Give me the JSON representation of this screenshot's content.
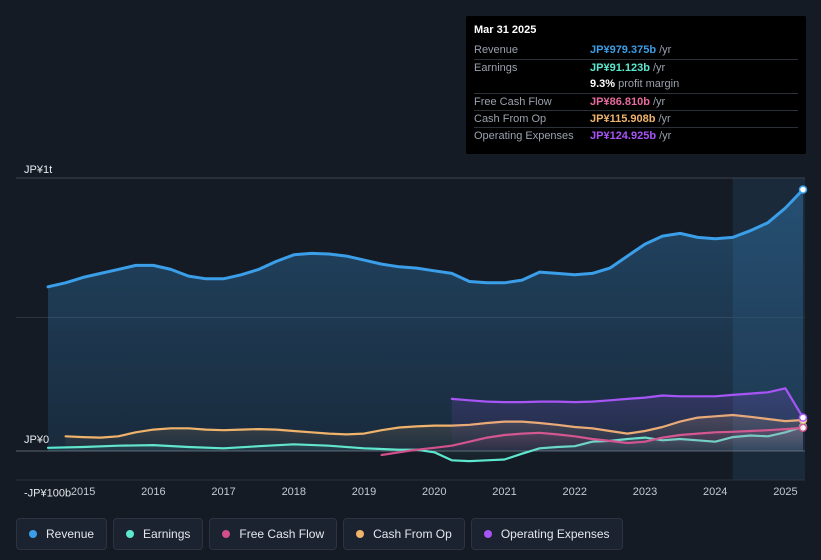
{
  "tooltip": {
    "date": "Mar 31 2025",
    "rows": [
      {
        "label": "Revenue",
        "value": "JP¥979.375b",
        "unit": "/yr",
        "color": "#3b9ee8"
      },
      {
        "label": "Earnings",
        "value": "JP¥91.123b",
        "unit": "/yr",
        "color": "#5ce8cf"
      },
      {
        "label": "",
        "value": "9.3%",
        "unit": "profit margin",
        "color": "#ffffff"
      },
      {
        "label": "Free Cash Flow",
        "value": "JP¥86.810b",
        "unit": "/yr",
        "color": "#e86a9e"
      },
      {
        "label": "Cash From Op",
        "value": "JP¥115.908b",
        "unit": "/yr",
        "color": "#f0b36b"
      },
      {
        "label": "Operating Expenses",
        "value": "JP¥124.925b",
        "unit": "/yr",
        "color": "#a855f7"
      }
    ]
  },
  "legend": [
    {
      "label": "Revenue",
      "color": "#3b9ee8"
    },
    {
      "label": "Earnings",
      "color": "#5ce8cf"
    },
    {
      "label": "Free Cash Flow",
      "color": "#d34e8c"
    },
    {
      "label": "Cash From Op",
      "color": "#f0b36b"
    },
    {
      "label": "Operating Expenses",
      "color": "#a855f7"
    }
  ],
  "chart_data": {
    "type": "area",
    "title": "",
    "unit": "JP¥ billions",
    "y_axis_labels": [
      "JP¥1t",
      "JP¥0",
      "-JP¥100b"
    ],
    "ylim": [
      -100,
      1000
    ],
    "xlim": [
      2014.5,
      2025.25
    ],
    "x_ticks": [
      "2015",
      "2016",
      "2017",
      "2018",
      "2019",
      "2020",
      "2021",
      "2022",
      "2023",
      "2024",
      "2025"
    ],
    "highlight_range": [
      2024.25,
      2025.25
    ],
    "series": [
      {
        "name": "Revenue",
        "color": "#3b9ee8",
        "fill": true,
        "x": [
          2014.5,
          2014.75,
          2015.0,
          2015.25,
          2015.5,
          2015.75,
          2016.0,
          2016.25,
          2016.5,
          2016.75,
          2017.0,
          2017.25,
          2017.5,
          2017.75,
          2018.0,
          2018.25,
          2018.5,
          2018.75,
          2019.0,
          2019.25,
          2019.5,
          2019.75,
          2020.0,
          2020.25,
          2020.5,
          2020.75,
          2021.0,
          2021.25,
          2021.5,
          2021.75,
          2022.0,
          2022.25,
          2022.5,
          2022.75,
          2023.0,
          2023.25,
          2023.5,
          2023.75,
          2024.0,
          2024.25,
          2024.5,
          2024.75,
          2025.0,
          2025.25
        ],
        "y": [
          615,
          630,
          650,
          665,
          680,
          695,
          695,
          680,
          655,
          645,
          645,
          660,
          680,
          710,
          735,
          740,
          738,
          730,
          715,
          700,
          690,
          685,
          675,
          665,
          635,
          630,
          630,
          640,
          670,
          665,
          660,
          665,
          685,
          730,
          775,
          805,
          815,
          800,
          795,
          800,
          825,
          855,
          910,
          979
        ]
      },
      {
        "name": "Earnings",
        "color": "#5ce8cf",
        "fill": false,
        "x": [
          2014.5,
          2015.0,
          2015.5,
          2016.0,
          2016.5,
          2017.0,
          2017.5,
          2018.0,
          2018.5,
          2019.0,
          2019.5,
          2019.75,
          2020.0,
          2020.25,
          2020.5,
          2020.75,
          2021.0,
          2021.25,
          2021.5,
          2021.75,
          2022.0,
          2022.25,
          2022.5,
          2022.75,
          2023.0,
          2023.25,
          2023.5,
          2023.75,
          2024.0,
          2024.25,
          2024.5,
          2024.75,
          2025.0,
          2025.25
        ],
        "y": [
          12,
          15,
          20,
          22,
          15,
          10,
          18,
          25,
          20,
          10,
          5,
          5,
          -5,
          -35,
          -38,
          -35,
          -32,
          -10,
          10,
          15,
          18,
          35,
          38,
          45,
          50,
          40,
          45,
          40,
          35,
          52,
          58,
          55,
          70,
          91
        ]
      },
      {
        "name": "Free Cash Flow",
        "color": "#d34e8c",
        "fill": false,
        "x": [
          2019.25,
          2019.5,
          2019.75,
          2020.0,
          2020.25,
          2020.5,
          2020.75,
          2021.0,
          2021.25,
          2021.5,
          2021.75,
          2022.0,
          2022.25,
          2022.5,
          2022.75,
          2023.0,
          2023.25,
          2023.5,
          2023.75,
          2024.0,
          2024.25,
          2024.5,
          2024.75,
          2025.0,
          2025.25
        ],
        "y": [
          -15,
          -5,
          5,
          12,
          20,
          35,
          50,
          60,
          65,
          68,
          62,
          55,
          45,
          38,
          30,
          35,
          50,
          60,
          65,
          70,
          72,
          75,
          78,
          82,
          87
        ]
      },
      {
        "name": "Cash From Op",
        "color": "#f0b36b",
        "fill": false,
        "x": [
          2014.75,
          2015.0,
          2015.25,
          2015.5,
          2015.75,
          2016.0,
          2016.25,
          2016.5,
          2016.75,
          2017.0,
          2017.25,
          2017.5,
          2017.75,
          2018.0,
          2018.25,
          2018.5,
          2018.75,
          2019.0,
          2019.25,
          2019.5,
          2019.75,
          2020.0,
          2020.25,
          2020.5,
          2020.75,
          2021.0,
          2021.25,
          2021.5,
          2021.75,
          2022.0,
          2022.25,
          2022.5,
          2022.75,
          2023.0,
          2023.25,
          2023.5,
          2023.75,
          2024.0,
          2024.25,
          2024.5,
          2024.75,
          2025.0,
          2025.25
        ],
        "y": [
          55,
          52,
          50,
          55,
          70,
          80,
          85,
          85,
          80,
          78,
          80,
          82,
          80,
          75,
          70,
          65,
          62,
          65,
          78,
          88,
          92,
          95,
          95,
          98,
          105,
          110,
          110,
          105,
          98,
          90,
          85,
          75,
          65,
          75,
          90,
          110,
          125,
          130,
          135,
          128,
          120,
          112,
          116
        ]
      },
      {
        "name": "Operating Expenses",
        "color": "#a855f7",
        "fill": false,
        "x": [
          2020.25,
          2020.5,
          2020.75,
          2021.0,
          2021.25,
          2021.5,
          2021.75,
          2022.0,
          2022.25,
          2022.5,
          2022.75,
          2023.0,
          2023.25,
          2023.5,
          2023.75,
          2024.0,
          2024.25,
          2024.5,
          2024.75,
          2025.0,
          2025.25
        ],
        "y": [
          195,
          190,
          185,
          183,
          183,
          185,
          185,
          183,
          185,
          190,
          195,
          200,
          208,
          205,
          205,
          205,
          210,
          215,
          220,
          235,
          125
        ]
      }
    ]
  }
}
